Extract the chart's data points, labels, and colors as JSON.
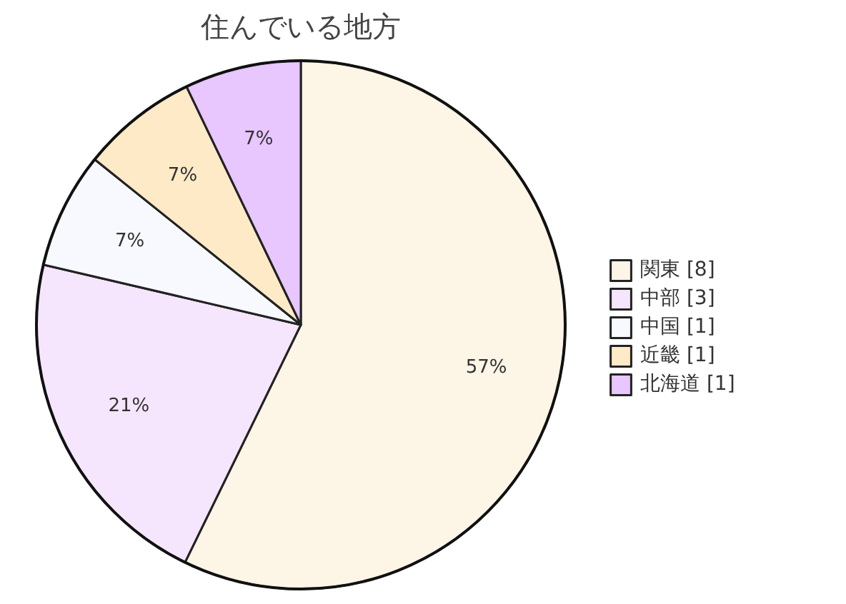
{
  "chart_data": {
    "type": "pie",
    "title": "住んでいる地方",
    "categories": [
      "関東 [8]",
      "中部 [3]",
      "中国 [1]",
      "近畿 [1]",
      "北海道 [1]"
    ],
    "values": [
      57.1,
      21.4,
      7.1,
      7.1,
      7.1
    ],
    "value_labels": [
      "57%",
      "21%",
      "7%",
      "7%",
      "7%"
    ],
    "colors": [
      "#fdf5e6",
      "#f5e6fd",
      "#f8f9fe",
      "#feeac6",
      "#e8c6fe"
    ],
    "legend": "right"
  }
}
